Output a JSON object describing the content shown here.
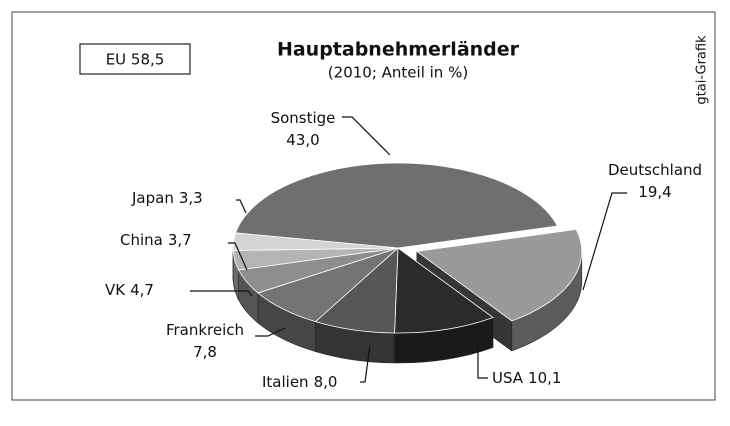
{
  "chart_data": {
    "type": "pie",
    "title": "Hauptabnehmerländer",
    "subtitle": "(2010; Anteil in %)",
    "annotation": "EU 58,5",
    "source": "gtai-Grafik",
    "categories": [
      "Sonstige",
      "Deutschland",
      "USA",
      "Italien",
      "Frankreich",
      "VK",
      "China",
      "Japan"
    ],
    "values": [
      43.0,
      19.4,
      10.1,
      8.0,
      7.8,
      4.7,
      3.7,
      3.3
    ],
    "value_labels": [
      "43,0",
      "19,4",
      "10,1",
      "8,0",
      "7,8",
      "4,7",
      "3,7",
      "3,3"
    ],
    "colors": [
      "#6f6f6f",
      "#9a9a9a",
      "#2b2b2b",
      "#575757",
      "#747474",
      "#8e8e8e",
      "#b4b4b4",
      "#d4d4d4"
    ]
  }
}
